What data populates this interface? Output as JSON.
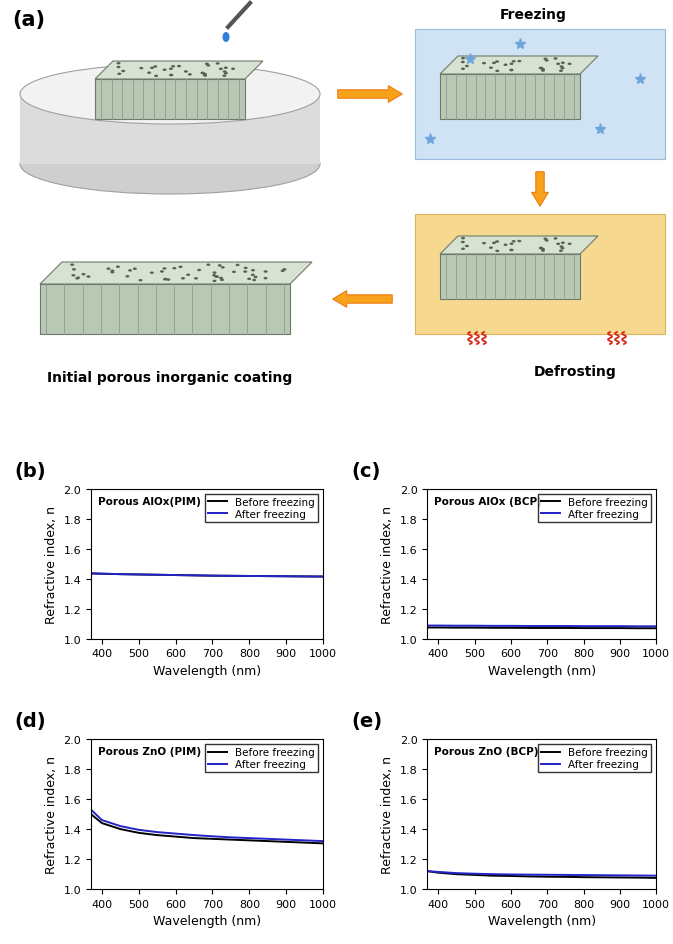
{
  "diagram": {
    "panel": "(a)",
    "steps": {
      "freezing": "Freezing",
      "defrosting": "Defrosting",
      "initial": "Initial porous inorganic coating"
    }
  },
  "chart_data": [
    {
      "type": "line",
      "panel": "(b)",
      "title": "Porous AlOx(PIM)",
      "x_label": "Wavelength (nm)",
      "y_label": "Refractive index, n",
      "x": [
        370,
        400,
        450,
        500,
        550,
        600,
        650,
        700,
        750,
        800,
        850,
        900,
        950,
        1000
      ],
      "series": [
        {
          "name": "Before freezing",
          "color": "#000000",
          "values": [
            1.435,
            1.433,
            1.43,
            1.428,
            1.426,
            1.424,
            1.422,
            1.42,
            1.419,
            1.418,
            1.417,
            1.416,
            1.415,
            1.414
          ]
        },
        {
          "name": "After freezing",
          "color": "#2323c8",
          "values": [
            1.435,
            1.433,
            1.43,
            1.428,
            1.426,
            1.424,
            1.422,
            1.42,
            1.419,
            1.418,
            1.417,
            1.416,
            1.415,
            1.414
          ]
        }
      ],
      "xlim": [
        370,
        1000
      ],
      "xticks": [
        400,
        500,
        600,
        700,
        800,
        900,
        1000
      ],
      "ylim": [
        1.0,
        2.0
      ],
      "yticks": [
        {
          "value": 1.0,
          "label": "1.0"
        },
        {
          "value": 1.2,
          "label": "1.2"
        },
        {
          "value": 1.4,
          "label": "1.4"
        },
        {
          "value": 1.6,
          "label": "1.6"
        },
        {
          "value": 1.8,
          "label": "1.8"
        },
        {
          "value": 2.0,
          "label": "2.0"
        }
      ],
      "legend": "upper right"
    },
    {
      "type": "line",
      "panel": "(c)",
      "title": "Porous AlOx (BCP)",
      "x_label": "Wavelength (nm)",
      "y_label": "Refractive index, n",
      "x": [
        370,
        400,
        450,
        500,
        550,
        600,
        650,
        700,
        750,
        800,
        850,
        900,
        950,
        1000
      ],
      "series": [
        {
          "name": "Before freezing",
          "color": "#000000",
          "values": [
            1.075,
            1.075,
            1.074,
            1.074,
            1.073,
            1.073,
            1.072,
            1.072,
            1.072,
            1.071,
            1.071,
            1.071,
            1.07,
            1.07
          ]
        },
        {
          "name": "After freezing",
          "color": "#2323c8",
          "values": [
            1.088,
            1.088,
            1.087,
            1.087,
            1.086,
            1.086,
            1.085,
            1.085,
            1.085,
            1.084,
            1.084,
            1.084,
            1.083,
            1.083
          ]
        }
      ],
      "xlim": [
        370,
        1000
      ],
      "xticks": [
        400,
        500,
        600,
        700,
        800,
        900,
        1000
      ],
      "ylim": [
        1.0,
        2.0
      ],
      "yticks": [
        {
          "value": 1.0,
          "label": "1.0"
        },
        {
          "value": 1.2,
          "label": "1.2"
        },
        {
          "value": 1.4,
          "label": "1.4"
        },
        {
          "value": 1.6,
          "label": "1.6"
        },
        {
          "value": 1.8,
          "label": "1.8"
        },
        {
          "value": 2.0,
          "label": "2.0"
        }
      ],
      "legend": "upper right"
    },
    {
      "type": "line",
      "panel": "(d)",
      "title": "Porous ZnO (PIM)",
      "x_label": "Wavelength (nm)",
      "y_label": "Refractive index, n",
      "x": [
        370,
        400,
        450,
        500,
        550,
        600,
        650,
        700,
        750,
        800,
        850,
        900,
        950,
        1000
      ],
      "series": [
        {
          "name": "Before freezing",
          "color": "#000000",
          "values": [
            1.5,
            1.44,
            1.4,
            1.375,
            1.36,
            1.35,
            1.34,
            1.335,
            1.33,
            1.325,
            1.32,
            1.315,
            1.31,
            1.305
          ]
        },
        {
          "name": "After freezing",
          "color": "#2323c8",
          "values": [
            1.53,
            1.46,
            1.42,
            1.395,
            1.38,
            1.37,
            1.36,
            1.352,
            1.345,
            1.34,
            1.335,
            1.33,
            1.325,
            1.32
          ]
        }
      ],
      "xlim": [
        370,
        1000
      ],
      "xticks": [
        400,
        500,
        600,
        700,
        800,
        900,
        1000
      ],
      "ylim": [
        1.0,
        2.0
      ],
      "yticks": [
        {
          "value": 1.0,
          "label": "1.0"
        },
        {
          "value": 1.2,
          "label": "1.2"
        },
        {
          "value": 1.4,
          "label": "1.4"
        },
        {
          "value": 1.6,
          "label": "1.6"
        },
        {
          "value": 1.8,
          "label": "1.8"
        },
        {
          "value": 2.0,
          "label": "2.0"
        }
      ],
      "legend": "upper right"
    },
    {
      "type": "line",
      "panel": "(e)",
      "title": "Porous ZnO (BCP)",
      "x_label": "Wavelength (nm)",
      "y_label": "Refractive index, n",
      "x": [
        370,
        400,
        450,
        500,
        550,
        600,
        650,
        700,
        750,
        800,
        850,
        900,
        950,
        1000
      ],
      "series": [
        {
          "name": "Before freezing",
          "color": "#000000",
          "values": [
            1.12,
            1.11,
            1.1,
            1.095,
            1.09,
            1.088,
            1.085,
            1.083,
            1.082,
            1.08,
            1.079,
            1.078,
            1.077,
            1.075
          ]
        },
        {
          "name": "After freezing",
          "color": "#2323c8",
          "values": [
            1.12,
            1.115,
            1.107,
            1.103,
            1.1,
            1.098,
            1.097,
            1.096,
            1.095,
            1.094,
            1.093,
            1.092,
            1.091,
            1.09
          ]
        }
      ],
      "xlim": [
        370,
        1000
      ],
      "xticks": [
        400,
        500,
        600,
        700,
        800,
        900,
        1000
      ],
      "ylim": [
        1.0,
        2.0
      ],
      "yticks": [
        {
          "value": 1.0,
          "label": "1.0"
        },
        {
          "value": 1.2,
          "label": "1.2"
        },
        {
          "value": 1.4,
          "label": "1.4"
        },
        {
          "value": 1.6,
          "label": "1.6"
        },
        {
          "value": 1.8,
          "label": "1.8"
        },
        {
          "value": 2.0,
          "label": "2.0"
        }
      ],
      "legend": "upper right"
    }
  ]
}
